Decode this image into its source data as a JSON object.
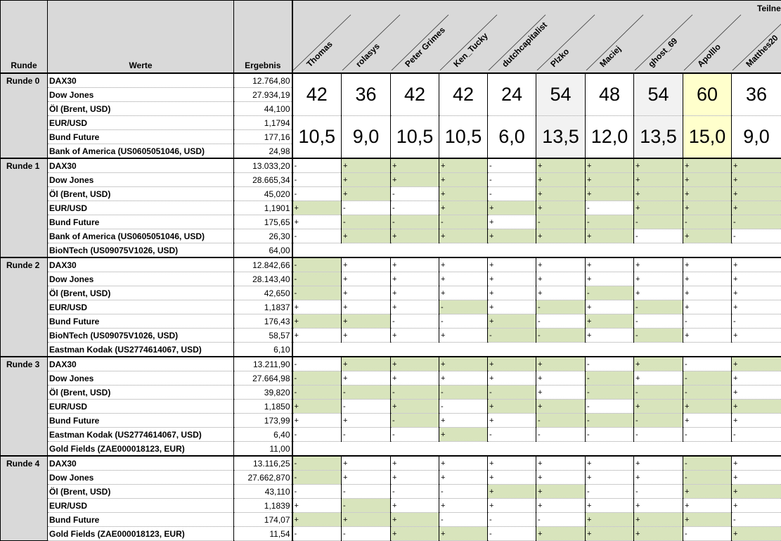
{
  "header": {
    "runde": "Runde",
    "werte": "Werte",
    "ergebnis": "Ergebnis",
    "teilnehmer": "Teilnehmer"
  },
  "colors": {
    "correct": "#d8e4bc",
    "header": "#d9d9d9"
  },
  "participants": [
    {
      "name": "Thomas",
      "highlight": "#ffffff"
    },
    {
      "name": "rolasys",
      "highlight": "#ffffff"
    },
    {
      "name": "Peter Grimes",
      "highlight": "#ffffff"
    },
    {
      "name": "Ken_Tucky",
      "highlight": "#ffffff"
    },
    {
      "name": "dutchcapitalist",
      "highlight": "#ffffff"
    },
    {
      "name": "Plzko",
      "highlight": "#f2f2f2"
    },
    {
      "name": "Maciej",
      "highlight": "#ffffff"
    },
    {
      "name": "ghost_69",
      "highlight": "#f2f2f2"
    },
    {
      "name": "Apolllo",
      "highlight": "#ffffcc"
    },
    {
      "name": "Matthes20",
      "highlight": "#ffffff"
    }
  ],
  "rounds": [
    {
      "label": "Runde 0",
      "points": [
        "42",
        "36",
        "42",
        "42",
        "24",
        "54",
        "48",
        "54",
        "60",
        "36"
      ],
      "values": [
        "10,5",
        "9,0",
        "10,5",
        "10,5",
        "6,0",
        "13,5",
        "12,0",
        "13,5",
        "15,0",
        "9,0"
      ],
      "rows": [
        {
          "wert": "DAX30",
          "ergebnis": "12.764,80"
        },
        {
          "wert": "Dow Jones",
          "ergebnis": "27.934,19"
        },
        {
          "wert": "Öl (Brent, USD)",
          "ergebnis": "44,100"
        },
        {
          "wert": "EUR/USD",
          "ergebnis": "1,1794"
        },
        {
          "wert": "Bund Future",
          "ergebnis": "177,16"
        },
        {
          "wert": "Bank of America (US0605051046, USD)",
          "ergebnis": "24,98"
        }
      ]
    },
    {
      "label": "Runde 1",
      "rows": [
        {
          "wert": "DAX30",
          "ergebnis": "13.033,20",
          "tips": [
            "-",
            "+",
            "+",
            "+",
            "-",
            "+",
            "+",
            "+",
            "+",
            "+"
          ],
          "correct": [
            0,
            1,
            1,
            1,
            0,
            1,
            1,
            1,
            1,
            1
          ]
        },
        {
          "wert": "Dow Jones",
          "ergebnis": "28.665,34",
          "tips": [
            "-",
            "+",
            "+",
            "+",
            "-",
            "+",
            "+",
            "+",
            "+",
            "+"
          ],
          "correct": [
            0,
            1,
            1,
            1,
            0,
            1,
            1,
            1,
            1,
            1
          ]
        },
        {
          "wert": "Öl (Brent, USD)",
          "ergebnis": "45,020",
          "tips": [
            "-",
            "+",
            "-",
            "+",
            "-",
            "+",
            "+",
            "+",
            "+",
            "+"
          ],
          "correct": [
            0,
            1,
            0,
            1,
            0,
            1,
            1,
            1,
            1,
            1
          ]
        },
        {
          "wert": "EUR/USD",
          "ergebnis": "1,1901",
          "tips": [
            "+",
            "-",
            "-",
            "+",
            "+",
            "+",
            "-",
            "+",
            "+",
            "+"
          ],
          "correct": [
            1,
            0,
            0,
            1,
            1,
            1,
            0,
            1,
            1,
            1
          ]
        },
        {
          "wert": "Bund Future",
          "ergebnis": "175,65",
          "tips": [
            "+",
            "-",
            "-",
            "-",
            "+",
            "-",
            "-",
            "-",
            "-",
            "-"
          ],
          "correct": [
            0,
            1,
            1,
            1,
            0,
            1,
            1,
            1,
            1,
            1
          ]
        },
        {
          "wert": "Bank of America (US0605051046, USD)",
          "ergebnis": "26,30",
          "tips": [
            "-",
            "+",
            "+",
            "+",
            "+",
            "+",
            "+",
            "-",
            "+",
            "-"
          ],
          "correct": [
            0,
            1,
            1,
            1,
            1,
            1,
            1,
            0,
            1,
            0
          ]
        },
        {
          "wert": "BioNTech (US09075V1026, USD)",
          "ergebnis": "64,00"
        }
      ]
    },
    {
      "label": "Runde 2",
      "rows": [
        {
          "wert": "DAX30",
          "ergebnis": "12.842,66",
          "tips": [
            "-",
            "+",
            "+",
            "+",
            "+",
            "+",
            "+",
            "+",
            "+",
            "+"
          ],
          "correct": [
            1,
            0,
            0,
            0,
            0,
            0,
            0,
            0,
            0,
            0
          ]
        },
        {
          "wert": "Dow Jones",
          "ergebnis": "28.143,40",
          "tips": [
            "-",
            "+",
            "+",
            "+",
            "+",
            "+",
            "+",
            "+",
            "+",
            "+"
          ],
          "correct": [
            1,
            0,
            0,
            0,
            0,
            0,
            0,
            0,
            0,
            0
          ]
        },
        {
          "wert": "Öl (Brent, USD)",
          "ergebnis": "42,650",
          "tips": [
            "-",
            "+",
            "+",
            "+",
            "+",
            "+",
            "-",
            "+",
            "+",
            "+"
          ],
          "correct": [
            1,
            0,
            0,
            0,
            0,
            0,
            1,
            0,
            0,
            0
          ]
        },
        {
          "wert": "EUR/USD",
          "ergebnis": "1,1837",
          "tips": [
            "+",
            "+",
            "+",
            "-",
            "+",
            "-",
            "+",
            "-",
            "+",
            "+"
          ],
          "correct": [
            0,
            0,
            0,
            1,
            0,
            1,
            0,
            1,
            0,
            0
          ]
        },
        {
          "wert": "Bund Future",
          "ergebnis": "176,43",
          "tips": [
            "+",
            "+",
            "-",
            "-",
            "+",
            "-",
            "+",
            "-",
            "-",
            "-"
          ],
          "correct": [
            1,
            1,
            0,
            0,
            1,
            0,
            1,
            0,
            0,
            0
          ]
        },
        {
          "wert": "BioNTech (US09075V1026, USD)",
          "ergebnis": "58,57",
          "tips": [
            "+",
            "+",
            "+",
            "+",
            "-",
            "-",
            "+",
            "-",
            "+",
            "+"
          ],
          "correct": [
            0,
            0,
            0,
            0,
            1,
            1,
            0,
            1,
            0,
            0
          ]
        },
        {
          "wert": "Eastman Kodak (US2774614067, USD)",
          "ergebnis": "6,10"
        }
      ]
    },
    {
      "label": "Runde 3",
      "rows": [
        {
          "wert": "DAX30",
          "ergebnis": "13.211,90",
          "tips": [
            "-",
            "+",
            "+",
            "+",
            "+",
            "+",
            "-",
            "+",
            "-",
            "+"
          ],
          "correct": [
            0,
            1,
            1,
            1,
            1,
            1,
            0,
            1,
            0,
            1
          ]
        },
        {
          "wert": "Dow Jones",
          "ergebnis": "27.664,98",
          "tips": [
            "-",
            "+",
            "+",
            "+",
            "+",
            "+",
            "-",
            "+",
            "-",
            "+"
          ],
          "correct": [
            1,
            0,
            0,
            0,
            0,
            0,
            1,
            0,
            1,
            0
          ]
        },
        {
          "wert": "Öl (Brent, USD)",
          "ergebnis": "39,820",
          "tips": [
            "-",
            "-",
            "-",
            "-",
            "-",
            "+",
            "-",
            "-",
            "-",
            "+"
          ],
          "correct": [
            1,
            1,
            1,
            1,
            1,
            0,
            1,
            1,
            1,
            0
          ]
        },
        {
          "wert": "EUR/USD",
          "ergebnis": "1,1850",
          "tips": [
            "+",
            "-",
            "+",
            "-",
            "+",
            "+",
            "-",
            "+",
            "+",
            "+"
          ],
          "correct": [
            1,
            0,
            1,
            0,
            1,
            1,
            0,
            1,
            1,
            1
          ]
        },
        {
          "wert": "Bund Future",
          "ergebnis": "173,99",
          "tips": [
            "+",
            "+",
            "-",
            "+",
            "+",
            "-",
            "-",
            "-",
            "+",
            "+"
          ],
          "correct": [
            0,
            0,
            1,
            0,
            0,
            1,
            1,
            1,
            0,
            0
          ]
        },
        {
          "wert": "Eastman Kodak (US2774614067, USD)",
          "ergebnis": "6,40",
          "tips": [
            "-",
            "-",
            "-",
            "+",
            "-",
            "-",
            "-",
            "-",
            "-",
            "-"
          ],
          "correct": [
            0,
            0,
            0,
            1,
            0,
            0,
            0,
            0,
            0,
            0
          ]
        },
        {
          "wert": "Gold Fields (ZAE000018123, EUR)",
          "ergebnis": "11,00"
        }
      ]
    },
    {
      "label": "Runde 4",
      "rows": [
        {
          "wert": "DAX30",
          "ergebnis": "13.116,25",
          "tips": [
            "-",
            "+",
            "+",
            "+",
            "+",
            "+",
            "+",
            "+",
            "-",
            "+"
          ],
          "correct": [
            1,
            0,
            0,
            0,
            0,
            0,
            0,
            0,
            1,
            0
          ]
        },
        {
          "wert": "Dow Jones",
          "ergebnis": "27.662,870",
          "tips": [
            "-",
            "+",
            "+",
            "+",
            "+",
            "+",
            "+",
            "+",
            "-",
            "+"
          ],
          "correct": [
            1,
            0,
            0,
            0,
            0,
            0,
            0,
            0,
            1,
            0
          ]
        },
        {
          "wert": "Öl (Brent, USD)",
          "ergebnis": "43,110",
          "tips": [
            "-",
            "-",
            "-",
            "-",
            "+",
            "+",
            "-",
            "-",
            "+",
            "+"
          ],
          "correct": [
            0,
            0,
            0,
            0,
            1,
            1,
            0,
            0,
            1,
            1
          ]
        },
        {
          "wert": "EUR/USD",
          "ergebnis": "1,1839",
          "tips": [
            "+",
            "-",
            "+",
            "+",
            "+",
            "+",
            "+",
            "+",
            "+",
            "+"
          ],
          "correct": [
            0,
            1,
            0,
            0,
            0,
            0,
            0,
            0,
            0,
            0
          ]
        },
        {
          "wert": "Bund Future",
          "ergebnis": "174,07",
          "tips": [
            "+",
            "+",
            "+",
            "-",
            "-",
            "-",
            "+",
            "+",
            "+",
            "-"
          ],
          "correct": [
            1,
            1,
            1,
            0,
            0,
            0,
            1,
            1,
            1,
            0
          ]
        },
        {
          "wert": "Gold Fields (ZAE000018123, EUR)",
          "ergebnis": "11,54",
          "tips": [
            "-",
            "-",
            "+",
            "+",
            "-",
            "+",
            "+",
            "+",
            "-",
            "+"
          ],
          "correct": [
            0,
            0,
            1,
            1,
            0,
            1,
            1,
            1,
            0,
            1
          ]
        }
      ]
    }
  ]
}
